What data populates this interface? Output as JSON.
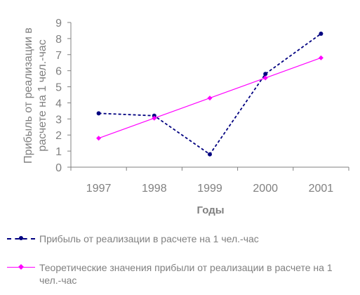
{
  "chart_data": {
    "type": "line",
    "title": "",
    "xlabel": "Годы",
    "ylabel": "Прибыль от реализации в расчете на 1 чел.-час",
    "categories": [
      "1997",
      "1998",
      "1999",
      "2000",
      "2001"
    ],
    "ylim": [
      0,
      9
    ],
    "yticks": [
      "0",
      "1",
      "2",
      "3",
      "4",
      "5",
      "6",
      "7",
      "8",
      "9"
    ],
    "grid": false,
    "legend": "bottom",
    "series": [
      {
        "name": "Прибыль от реализации в расчете на 1 чел.-час",
        "values": [
          3.35,
          3.2,
          0.8,
          5.8,
          8.3
        ],
        "color": "#000080",
        "style": "dashed"
      },
      {
        "name": "Теоретические значения прибыли от реализации в расчете на 1 чел.-час",
        "values": [
          1.8,
          3.05,
          4.3,
          5.55,
          6.8
        ],
        "color": "#FF00FF",
        "style": "solid"
      }
    ]
  }
}
